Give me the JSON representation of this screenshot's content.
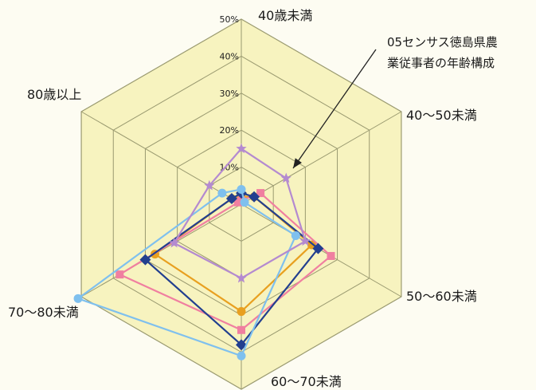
{
  "chart_data": {
    "type": "radar",
    "axes": [
      "40歳未満",
      "40～50未満",
      "50～60未満",
      "60～70未満",
      "70～80未満",
      "80歳以上"
    ],
    "ticks": [
      "10%",
      "20%",
      "30%",
      "40%",
      "50%"
    ],
    "range": [
      0,
      50
    ],
    "grid": true,
    "annotation": [
      "05センサス徳島県農",
      "業従事者の年齢構成"
    ],
    "series": [
      {
        "values": [
          2,
          4,
          22,
          29,
          27,
          3
        ],
        "color": "#e8a020",
        "marker": "circle"
      },
      {
        "values": [
          1,
          6,
          28,
          34,
          38,
          1
        ],
        "color": "#f07fa0",
        "marker": "square"
      },
      {
        "values": [
          3,
          4,
          24,
          38,
          30,
          3
        ],
        "color": "#223f8f",
        "marker": "diamond"
      },
      {
        "values": [
          4,
          1,
          17,
          41,
          51,
          6
        ],
        "color": "#7fc0ee",
        "marker": "circle"
      },
      {
        "values": [
          15,
          14,
          20,
          20,
          21,
          10
        ],
        "color": "#b48ad0",
        "marker": "star"
      }
    ],
    "colors": {
      "background": "#fdfcf2",
      "plot_fill": "#f7f3bf",
      "grid_line": "#9a9a70",
      "arrow": "#222222"
    }
  }
}
